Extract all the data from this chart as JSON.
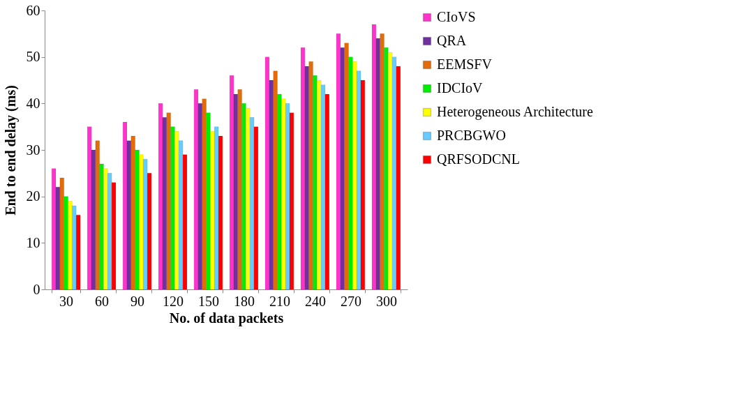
{
  "chart_data": {
    "type": "bar",
    "xlabel": "No. of data packets",
    "ylabel": "End to end delay (ms)",
    "categories": [
      "30",
      "60",
      "90",
      "120",
      "150",
      "180",
      "210",
      "240",
      "270",
      "300"
    ],
    "series": [
      {
        "name": "CIoVS",
        "color": "#ff33cc",
        "values": [
          26,
          35,
          36,
          40,
          43,
          46,
          50,
          52,
          55,
          57
        ]
      },
      {
        "name": "QRA",
        "color": "#7030a0",
        "values": [
          22,
          30,
          32,
          37,
          40,
          42,
          45,
          48,
          52,
          54
        ]
      },
      {
        "name": "EEMSFV",
        "color": "#e36c09",
        "values": [
          24,
          32,
          33,
          38,
          41,
          43,
          47,
          49,
          53,
          55
        ]
      },
      {
        "name": "IDCIoV",
        "color": "#00ee00",
        "values": [
          20,
          27,
          30,
          35,
          38,
          40,
          42,
          46,
          50,
          52
        ]
      },
      {
        "name": "Heterogeneous Architecture",
        "color": "#ffff00",
        "values": [
          19,
          26,
          29,
          34,
          34,
          39,
          41,
          45,
          49,
          51
        ]
      },
      {
        "name": "PRCBGWO",
        "color": "#66ccff",
        "values": [
          18,
          25,
          28,
          32,
          35,
          37,
          40,
          44,
          47,
          50
        ]
      },
      {
        "name": "QRFSODCNL",
        "color": "#ff0000",
        "values": [
          16,
          23,
          25,
          29,
          33,
          35,
          38,
          42,
          45,
          48
        ]
      }
    ],
    "ylim": [
      0,
      60
    ],
    "yticks": [
      0,
      10,
      20,
      30,
      40,
      50,
      60
    ],
    "grid": false,
    "legend": "right"
  }
}
